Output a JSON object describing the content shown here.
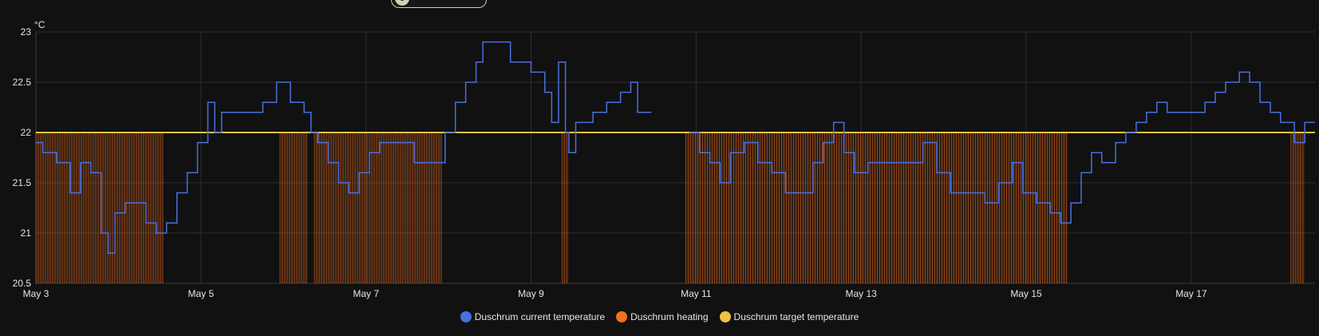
{
  "chart_data": {
    "type": "line",
    "y_unit": "°C",
    "ylim": [
      20.5,
      23
    ],
    "y_ticks": [
      "20.5",
      "21",
      "21.5",
      "22",
      "22.5",
      "23"
    ],
    "xlim": [
      "2025-05-03",
      "2025-05-18T12:00"
    ],
    "x_ticks": [
      {
        "label": "May 3",
        "date": "2025-05-03"
      },
      {
        "label": "May 5",
        "date": "2025-05-05"
      },
      {
        "label": "May 7",
        "date": "2025-05-07"
      },
      {
        "label": "May 9",
        "date": "2025-05-09"
      },
      {
        "label": "May 11",
        "date": "2025-05-11"
      },
      {
        "label": "May 13",
        "date": "2025-05-13"
      },
      {
        "label": "May 15",
        "date": "2025-05-15"
      },
      {
        "label": "May 17",
        "date": "2025-05-17"
      }
    ],
    "grid": true,
    "legend_position": "bottom-center",
    "series": [
      {
        "name": "Duschrum current temperature",
        "color": "#4a6fe0",
        "points": [
          [
            "2025-05-03T00:00",
            21.9
          ],
          [
            "2025-05-03T02:00",
            21.8
          ],
          [
            "2025-05-03T06:00",
            21.7
          ],
          [
            "2025-05-03T10:00",
            21.4
          ],
          [
            "2025-05-03T13:00",
            21.7
          ],
          [
            "2025-05-03T16:00",
            21.6
          ],
          [
            "2025-05-03T19:00",
            21.0
          ],
          [
            "2025-05-03T21:00",
            20.8
          ],
          [
            "2025-05-03T23:00",
            21.2
          ],
          [
            "2025-05-04T02:00",
            21.3
          ],
          [
            "2025-05-04T05:00",
            21.3
          ],
          [
            "2025-05-04T08:00",
            21.1
          ],
          [
            "2025-05-04T11:00",
            21.0
          ],
          [
            "2025-05-04T14:00",
            21.1
          ],
          [
            "2025-05-04T17:00",
            21.4
          ],
          [
            "2025-05-04T20:00",
            21.6
          ],
          [
            "2025-05-04T23:00",
            21.9
          ],
          [
            "2025-05-05T02:00",
            22.3
          ],
          [
            "2025-05-05T04:00",
            22.0
          ],
          [
            "2025-05-05T06:00",
            22.2
          ],
          [
            "2025-05-05T12:00",
            22.2
          ],
          [
            "2025-05-05T18:00",
            22.3
          ],
          [
            "2025-05-05T22:00",
            22.5
          ],
          [
            "2025-05-06T02:00",
            22.3
          ],
          [
            "2025-05-06T06:00",
            22.2
          ],
          [
            "2025-05-06T08:00",
            22.0
          ],
          [
            "2025-05-06T10:00",
            21.9
          ],
          [
            "2025-05-06T13:00",
            21.7
          ],
          [
            "2025-05-06T16:00",
            21.5
          ],
          [
            "2025-05-06T19:00",
            21.4
          ],
          [
            "2025-05-06T22:00",
            21.6
          ],
          [
            "2025-05-07T01:00",
            21.8
          ],
          [
            "2025-05-07T04:00",
            21.9
          ],
          [
            "2025-05-07T10:00",
            21.9
          ],
          [
            "2025-05-07T14:00",
            21.7
          ],
          [
            "2025-05-07T20:00",
            21.7
          ],
          [
            "2025-05-07T23:00",
            22.0
          ],
          [
            "2025-05-08T02:00",
            22.3
          ],
          [
            "2025-05-08T05:00",
            22.5
          ],
          [
            "2025-05-08T08:00",
            22.7
          ],
          [
            "2025-05-08T10:00",
            22.9
          ],
          [
            "2025-05-08T14:00",
            22.9
          ],
          [
            "2025-05-08T18:00",
            22.7
          ],
          [
            "2025-05-09T00:00",
            22.6
          ],
          [
            "2025-05-09T04:00",
            22.4
          ],
          [
            "2025-05-09T06:00",
            22.1
          ],
          [
            "2025-05-09T08:00",
            22.7
          ],
          [
            "2025-05-09T10:00",
            22.0
          ],
          [
            "2025-05-09T11:00",
            21.8
          ],
          [
            "2025-05-09T13:00",
            22.1
          ],
          [
            "2025-05-09T18:00",
            22.2
          ],
          [
            "2025-05-09T22:00",
            22.3
          ],
          [
            "2025-05-10T02:00",
            22.4
          ],
          [
            "2025-05-10T05:00",
            22.5
          ],
          [
            "2025-05-10T07:00",
            22.2
          ],
          [
            "2025-05-10T11:00",
            22.2
          ],
          null,
          [
            "2025-05-10T22:00",
            22.0
          ],
          [
            "2025-05-11T01:00",
            21.8
          ],
          [
            "2025-05-11T04:00",
            21.7
          ],
          [
            "2025-05-11T07:00",
            21.5
          ],
          [
            "2025-05-11T10:00",
            21.8
          ],
          [
            "2025-05-11T14:00",
            21.9
          ],
          [
            "2025-05-11T18:00",
            21.7
          ],
          [
            "2025-05-11T22:00",
            21.6
          ],
          [
            "2025-05-12T02:00",
            21.4
          ],
          [
            "2025-05-12T07:00",
            21.4
          ],
          [
            "2025-05-12T10:00",
            21.7
          ],
          [
            "2025-05-12T13:00",
            21.9
          ],
          [
            "2025-05-12T16:00",
            22.1
          ],
          [
            "2025-05-12T19:00",
            21.8
          ],
          [
            "2025-05-12T22:00",
            21.6
          ],
          [
            "2025-05-13T02:00",
            21.7
          ],
          [
            "2025-05-13T10:00",
            21.7
          ],
          [
            "2025-05-13T16:00",
            21.7
          ],
          [
            "2025-05-13T18:00",
            21.9
          ],
          [
            "2025-05-13T22:00",
            21.6
          ],
          [
            "2025-05-14T02:00",
            21.4
          ],
          [
            "2025-05-14T08:00",
            21.4
          ],
          [
            "2025-05-14T12:00",
            21.3
          ],
          [
            "2025-05-14T16:00",
            21.5
          ],
          [
            "2025-05-14T20:00",
            21.7
          ],
          [
            "2025-05-14T23:00",
            21.4
          ],
          [
            "2025-05-15T03:00",
            21.3
          ],
          [
            "2025-05-15T07:00",
            21.2
          ],
          [
            "2025-05-15T10:00",
            21.1
          ],
          [
            "2025-05-15T13:00",
            21.3
          ],
          [
            "2025-05-15T16:00",
            21.6
          ],
          [
            "2025-05-15T19:00",
            21.8
          ],
          [
            "2025-05-15T22:00",
            21.7
          ],
          [
            "2025-05-16T02:00",
            21.9
          ],
          [
            "2025-05-16T05:00",
            22.0
          ],
          [
            "2025-05-16T08:00",
            22.1
          ],
          [
            "2025-05-16T11:00",
            22.2
          ],
          [
            "2025-05-16T14:00",
            22.3
          ],
          [
            "2025-05-16T17:00",
            22.2
          ],
          [
            "2025-05-16T20:00",
            22.2
          ],
          [
            "2025-05-17T01:00",
            22.2
          ],
          [
            "2025-05-17T04:00",
            22.3
          ],
          [
            "2025-05-17T07:00",
            22.4
          ],
          [
            "2025-05-17T10:00",
            22.5
          ],
          [
            "2025-05-17T14:00",
            22.6
          ],
          [
            "2025-05-17T17:00",
            22.5
          ],
          [
            "2025-05-17T20:00",
            22.3
          ],
          [
            "2025-05-17T23:00",
            22.2
          ],
          [
            "2025-05-18T02:00",
            22.1
          ],
          [
            "2025-05-18T06:00",
            21.9
          ],
          [
            "2025-05-18T09:00",
            22.1
          ],
          [
            "2025-05-18T12:00",
            22.1
          ]
        ]
      },
      {
        "name": "Duschrum heating",
        "color": "#f07020",
        "active_periods": [
          [
            "2025-05-03T00:00",
            "2025-05-04T13:00"
          ],
          [
            "2025-05-05T23:00",
            "2025-05-06T07:00"
          ],
          [
            "2025-05-06T09:00",
            "2025-05-07T22:00"
          ],
          [
            "2025-05-09T09:00",
            "2025-05-09T11:00"
          ],
          [
            "2025-05-10T21:00",
            "2025-05-15T12:00"
          ],
          [
            "2025-05-18T05:00",
            "2025-05-18T09:00"
          ]
        ]
      },
      {
        "name": "Duschrum target temperature",
        "color": "#f0c040",
        "value": 22
      }
    ]
  }
}
